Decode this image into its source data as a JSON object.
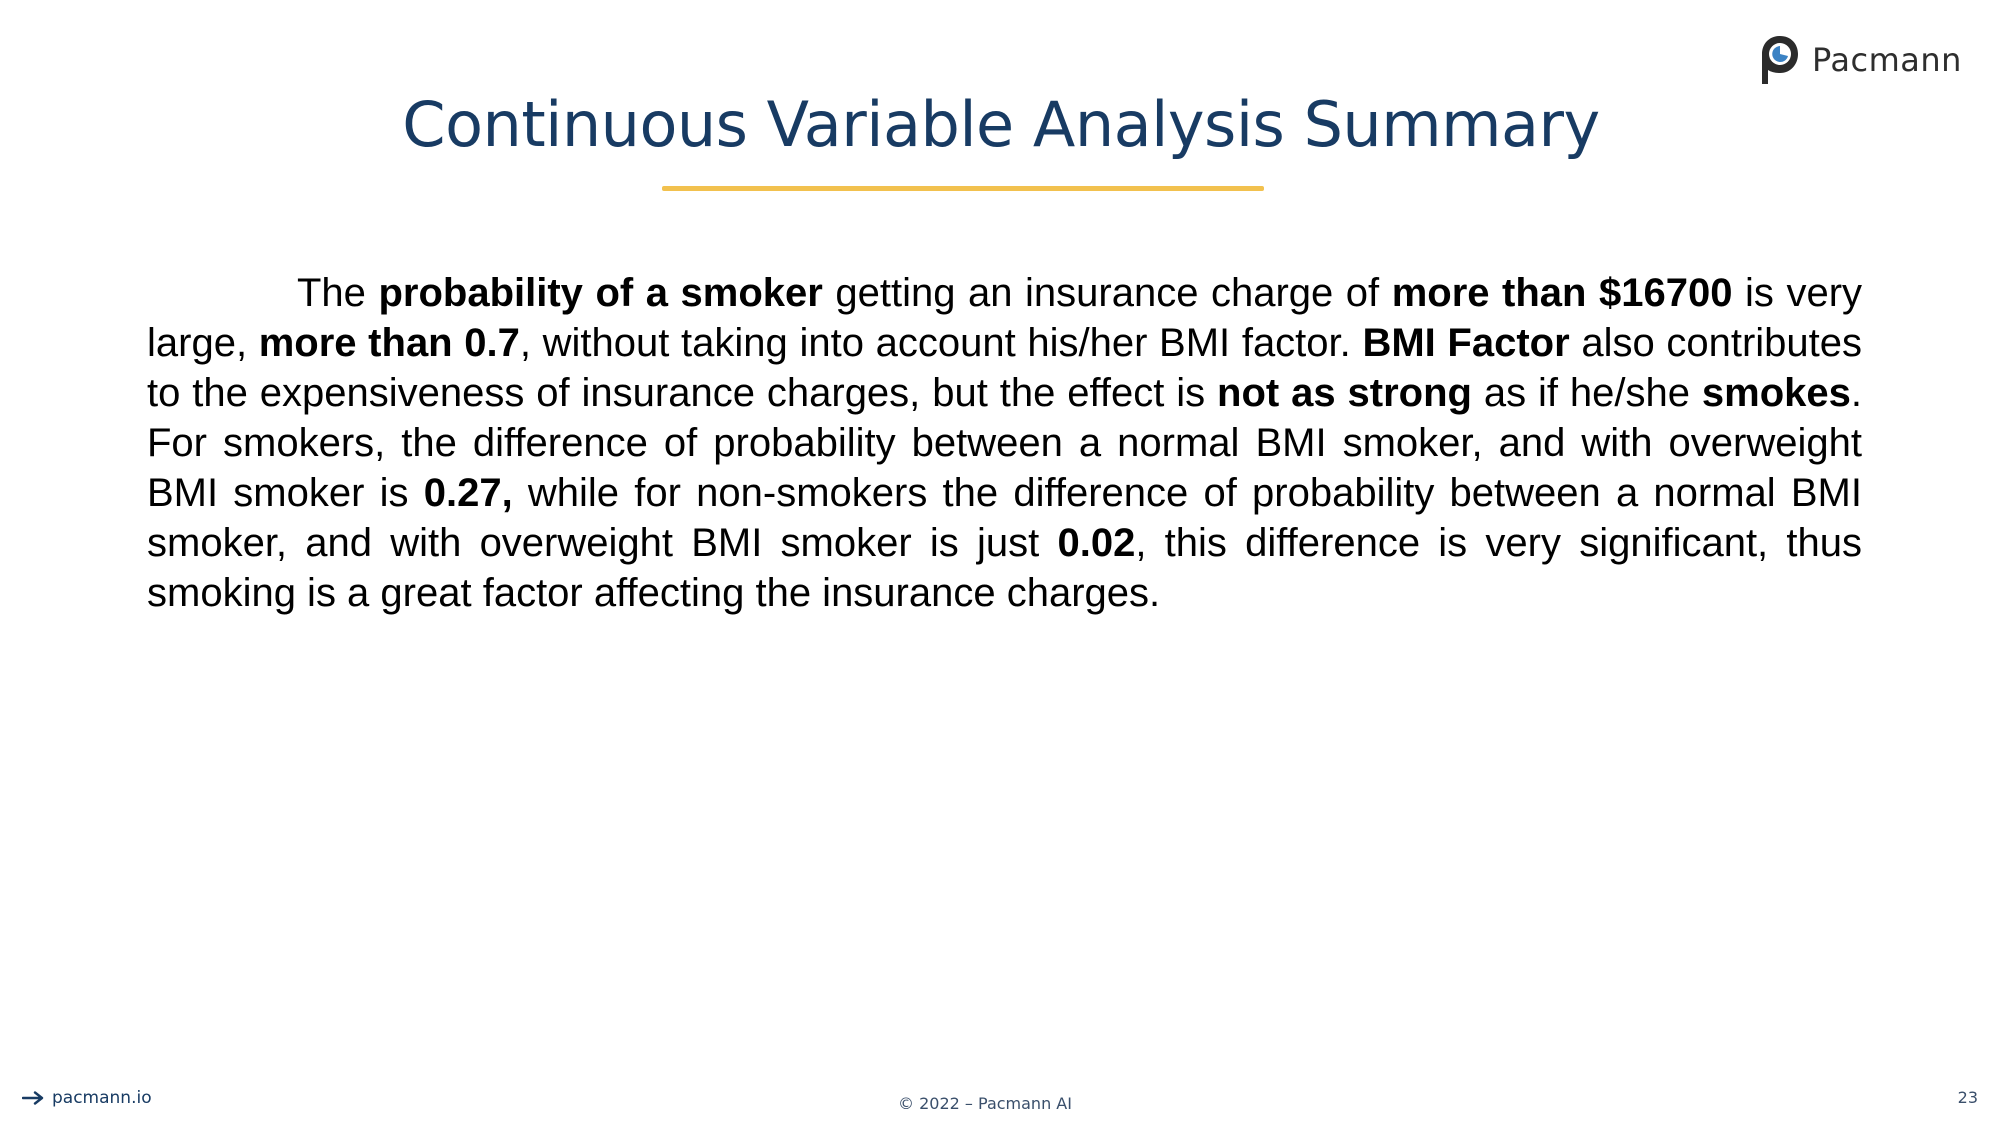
{
  "brand": {
    "name": "Pacmann",
    "logo_icon": "pacmann-logo-icon"
  },
  "slide": {
    "title": "Continuous Variable Analysis Summary",
    "accent_color": "#f2c14e",
    "title_color": "#183b63",
    "paragraph": [
      {
        "text": "The ",
        "bold": false
      },
      {
        "text": "probability of a smoker",
        "bold": true
      },
      {
        "text": " getting an insurance charge of ",
        "bold": false
      },
      {
        "text": "more than $16700",
        "bold": true
      },
      {
        "text": " is very large, ",
        "bold": false
      },
      {
        "text": "more than 0.7",
        "bold": true
      },
      {
        "text": ", without taking into account his/her BMI factor. ",
        "bold": false
      },
      {
        "text": "BMI Factor",
        "bold": true
      },
      {
        "text": " also contributes to the expensiveness of insurance charges, but the effect is ",
        "bold": false
      },
      {
        "text": "not as strong",
        "bold": true
      },
      {
        "text": " as if he/she ",
        "bold": false
      },
      {
        "text": "smokes",
        "bold": true
      },
      {
        "text": ". For smokers, the difference of probability between a normal BMI smoker, and with overweight BMI smoker is ",
        "bold": false
      },
      {
        "text": "0.27,",
        "bold": true
      },
      {
        "text": " while for non-smokers the difference of probability between a normal BMI smoker, and with overweight BMI smoker is just ",
        "bold": false
      },
      {
        "text": "0.02",
        "bold": true
      },
      {
        "text": ", this difference is very significant, thus smoking is a great factor affecting the insurance charges.",
        "bold": false
      }
    ]
  },
  "footer": {
    "link_text": "pacmann.io",
    "link_icon": "arrow-right-icon",
    "copyright": "© 2022 – Pacmann AI",
    "page_number": "23"
  }
}
